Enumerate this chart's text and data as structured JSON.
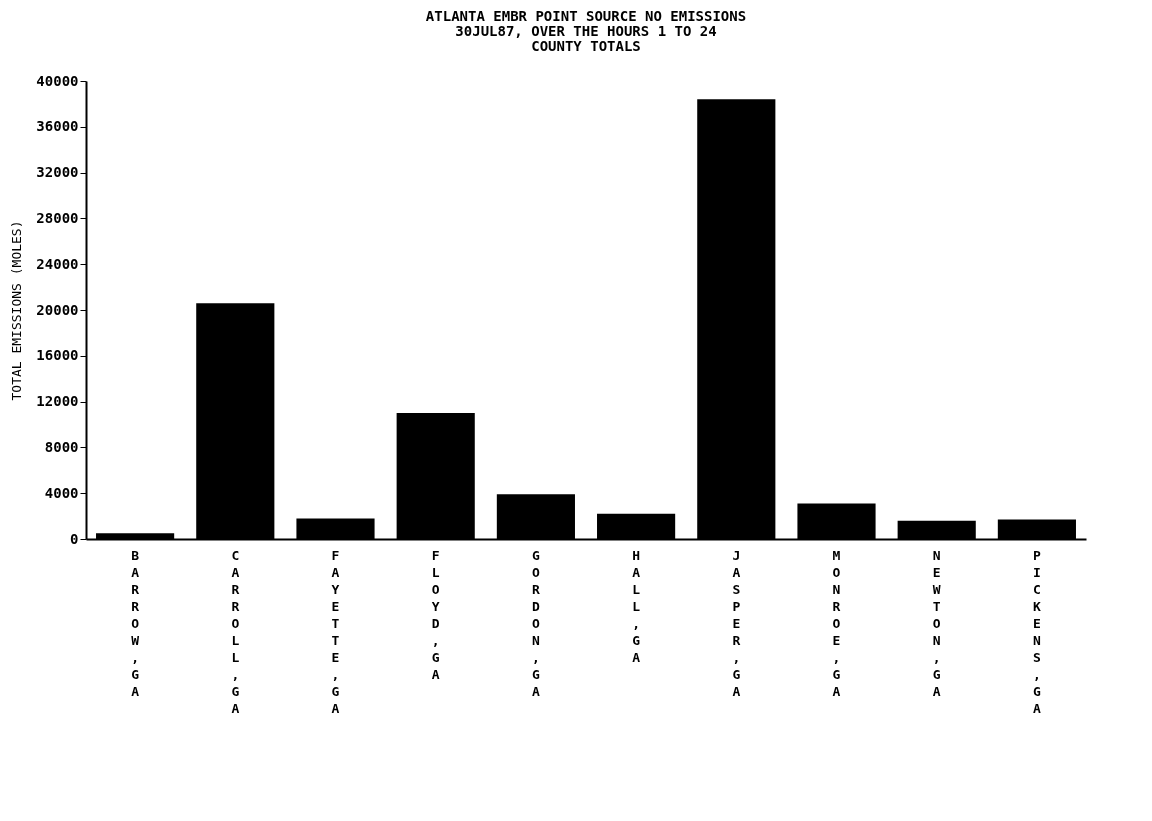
{
  "chart_data": {
    "type": "bar",
    "title": "ATLANTA EMBR POINT SOURCE NO EMISSIONS\n30JUL87, OVER THE HOURS 1 TO 24\nCOUNTY TOTALS",
    "ylabel": "TOTAL EMISSIONS (MOLES)",
    "categories": [
      "BARROW, GA",
      "CARROLL, GA",
      "FAYETTE, GA",
      "FLOYD, GA",
      "GORDON, GA",
      "HALL, GA",
      "JASPER, GA",
      "MONROE, GA",
      "NEWTON, GA",
      "PICKENS, GA"
    ],
    "values": [
      500,
      20600,
      1800,
      11000,
      3900,
      2200,
      38400,
      3100,
      1600,
      1700
    ],
    "color": "#000000",
    "ylim": [
      0,
      40000
    ],
    "yticks": [
      0,
      4000,
      8000,
      12000,
      16000,
      20000,
      24000,
      28000,
      32000,
      36000,
      40000
    ],
    "grid": false
  }
}
